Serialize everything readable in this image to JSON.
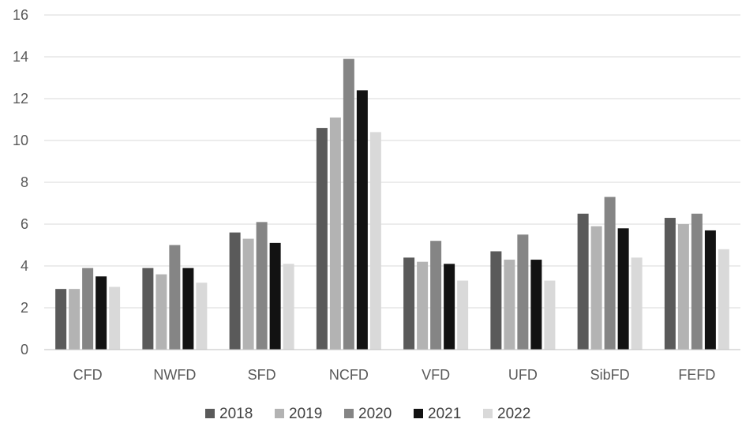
{
  "chart_data": {
    "type": "bar",
    "title": "",
    "xlabel": "",
    "ylabel": "",
    "ylim": [
      0,
      16
    ],
    "yticks": [
      0,
      2,
      4,
      6,
      8,
      10,
      12,
      14,
      16
    ],
    "grid": true,
    "legend_position": "bottom",
    "categories": [
      "CFD",
      "NWFD",
      "SFD",
      "NCFD",
      "VFD",
      "UFD",
      "SibFD",
      "FEFD"
    ],
    "series": [
      {
        "name": "2018",
        "color": "#5a5a5a",
        "values": [
          2.9,
          3.9,
          5.6,
          10.6,
          4.4,
          4.7,
          6.5,
          6.3
        ]
      },
      {
        "name": "2019",
        "color": "#b3b3b3",
        "values": [
          2.9,
          3.6,
          5.3,
          11.1,
          4.2,
          4.3,
          5.9,
          6.0
        ]
      },
      {
        "name": "2020",
        "color": "#858585",
        "values": [
          3.9,
          5.0,
          6.1,
          13.9,
          5.2,
          5.5,
          7.3,
          6.5
        ]
      },
      {
        "name": "2021",
        "color": "#121212",
        "values": [
          3.5,
          3.9,
          5.1,
          12.4,
          4.1,
          4.3,
          5.8,
          5.7
        ]
      },
      {
        "name": "2022",
        "color": "#d9d9d9",
        "values": [
          3.0,
          3.2,
          4.1,
          10.4,
          3.3,
          3.3,
          4.4,
          4.8
        ]
      }
    ]
  }
}
